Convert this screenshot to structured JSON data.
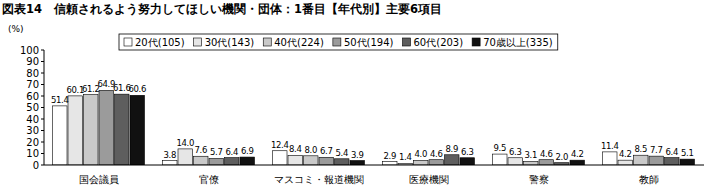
{
  "chart_data": {
    "type": "bar",
    "title": "図表14　信頼されるよう努力してほしい機関・団体：1番目【年代別】主要6項目",
    "y_label": "(%)",
    "categories": [
      "国会議員",
      "官僚",
      "マスコミ・報道機関",
      "医療機関",
      "警察",
      "教師"
    ],
    "series": [
      {
        "name": "20代(105)",
        "color": "#ffffff",
        "values": [
          51.4,
          3.8,
          12.4,
          2.9,
          9.5,
          11.4
        ],
        "value_labels": [
          "51.4",
          "3.8",
          "12.4",
          "2.9",
          "9.5",
          "11.4"
        ]
      },
      {
        "name": "30代(143)",
        "color": "#e6e6e6",
        "values": [
          60.1,
          14.0,
          8.4,
          1.4,
          6.3,
          4.2
        ],
        "value_labels": [
          "60.1",
          "14.0",
          "8.4",
          "1.4",
          "6.3",
          "4.2"
        ]
      },
      {
        "name": "40代(224)",
        "color": "#c9c9c9",
        "values": [
          61.2,
          7.6,
          8.0,
          4.0,
          3.1,
          8.5
        ],
        "value_labels": [
          "61.2",
          "7.6",
          "8.0",
          "4.0",
          "3.1",
          "8.5"
        ]
      },
      {
        "name": "50代(194)",
        "color": "#9b9b9b",
        "values": [
          64.9,
          5.7,
          6.7,
          4.6,
          4.6,
          7.7
        ],
        "value_labels": [
          "64.9",
          "5.7",
          "6.7",
          "4.6",
          "4.6",
          "7.7"
        ]
      },
      {
        "name": "60代(203)",
        "color": "#5e5e5e",
        "values": [
          61.6,
          6.4,
          5.4,
          8.9,
          2.0,
          6.4
        ],
        "value_labels": [
          "61.6",
          "6.4",
          "5.4",
          "8.9",
          "2.0",
          "6.4"
        ]
      },
      {
        "name": "70歳以上(335)",
        "color": "#111111",
        "values": [
          60.6,
          6.9,
          3.9,
          6.3,
          4.2,
          5.1
        ],
        "value_labels": [
          "60.6",
          "6.9",
          "3.9",
          "6.3",
          "4.2",
          "5.1"
        ]
      }
    ],
    "ylim": [
      0,
      100
    ],
    "yticks": [
      0,
      10,
      20,
      30,
      40,
      50,
      60,
      70,
      80,
      90,
      100
    ],
    "grid": false,
    "legend": "top",
    "data_labels": true
  }
}
